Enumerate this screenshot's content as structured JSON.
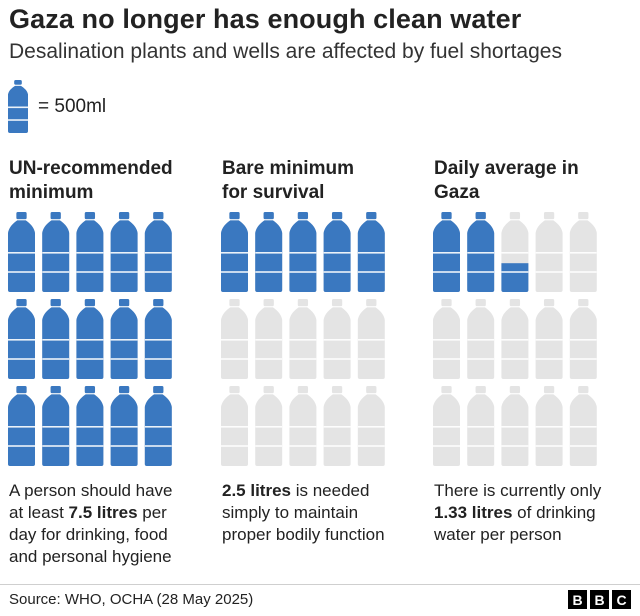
{
  "title": "Gaza no longer has enough clean water",
  "subtitle": "Desalination plants and wells are affected by fuel shortages",
  "legend": {
    "label": "= 500ml",
    "icon": "water-bottle-icon"
  },
  "colors": {
    "filled": "#3a78c0",
    "empty": "#e4e4e4"
  },
  "columns": [
    {
      "heading_line1": "UN-recommended",
      "heading_line2": "minimum",
      "text_line1": "A person should have",
      "text_line2_pre": "at least ",
      "text_line2_bold": "7.5 litres",
      "text_line2_post": " per",
      "text_line3": "day for drinking, food",
      "text_line4": "and personal hygiene"
    },
    {
      "heading_line1": "Bare minimum",
      "heading_line2": "for survival",
      "text_line1_bold": "2.5 litres",
      "text_line1_post": " is needed",
      "text_line2": "simply to maintain",
      "text_line3": "proper bodily function"
    },
    {
      "heading_line1": "Daily average in",
      "heading_line2": "Gaza",
      "text_line1": "There is currently only",
      "text_line2_bold": "1.33 litres",
      "text_line2_post": " of drinking",
      "text_line3": "water per person"
    }
  ],
  "chart_data": {
    "type": "pictogram",
    "unit": "bottle",
    "unit_value_ml": 500,
    "bottles_per_grid": 15,
    "series": [
      {
        "name": "UN-recommended minimum",
        "litres": 7.5,
        "bottles": 15
      },
      {
        "name": "Bare minimum for survival",
        "litres": 2.5,
        "bottles": 5
      },
      {
        "name": "Daily average in Gaza",
        "litres": 1.33,
        "bottles": 2.66
      }
    ]
  },
  "footer": {
    "source": "Source: WHO, OCHA (28 May 2025)",
    "logo": [
      "B",
      "B",
      "C"
    ]
  }
}
